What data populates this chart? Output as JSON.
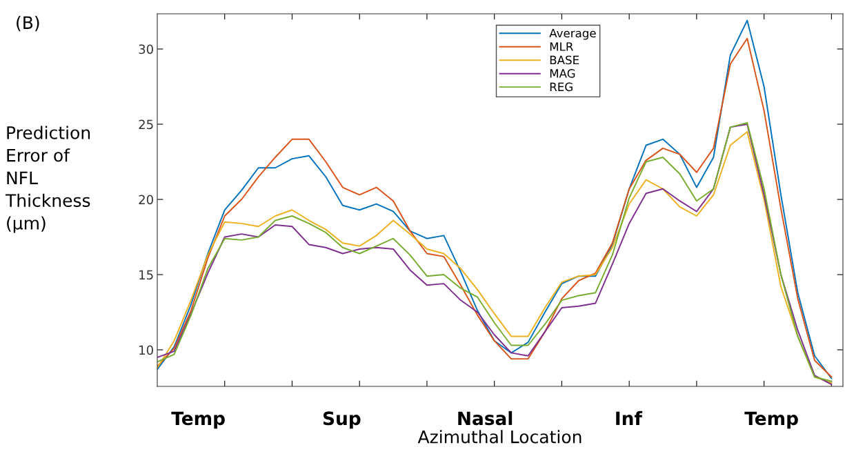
{
  "chart_data": {
    "type": "line",
    "title": "(B)",
    "xlabel": "Azimuthal Location",
    "ylabel": "Prediction\nError of\nNFL\nThickness\n(μm)",
    "annotations": [
      "Temp",
      "Sup",
      "Nasal",
      "Inf",
      "Temp"
    ],
    "categories": [
      null,
      null,
      null,
      null,
      null,
      null,
      null,
      null,
      null,
      null,
      null,
      null,
      null,
      null,
      null,
      null,
      null,
      null,
      null,
      null,
      null,
      null,
      null,
      null,
      null,
      null,
      null,
      null,
      null,
      null,
      null,
      null,
      null,
      null,
      null,
      null,
      null,
      null,
      null,
      null,
      null
    ],
    "ylim": [
      7.57,
      32.34
    ],
    "yticks": [
      10,
      15,
      20,
      25,
      30
    ],
    "grid": false,
    "legend": "top",
    "marker": "none",
    "line_style": "solid",
    "series": [
      {
        "name": "Average",
        "color": "#0072bd",
        "values": [
          8.7,
          10.2,
          13.0,
          16.4,
          19.3,
          20.6,
          22.1,
          22.1,
          22.7,
          22.9,
          21.5,
          19.6,
          19.3,
          19.7,
          19.2,
          17.9,
          17.4,
          17.6,
          15.2,
          12.6,
          10.6,
          9.8,
          10.5,
          12.5,
          14.4,
          14.9,
          14.9,
          17.0,
          20.7,
          23.6,
          24.0,
          23.0,
          20.8,
          22.8,
          29.6,
          31.9,
          27.5,
          20.3,
          13.8,
          9.6,
          8.1
        ]
      },
      {
        "name": "MLR",
        "color": "#d95319",
        "values": [
          8.9,
          10.1,
          12.6,
          16.1,
          18.9,
          20.0,
          21.5,
          22.8,
          24.0,
          24.0,
          22.5,
          20.8,
          20.3,
          20.8,
          19.9,
          17.9,
          16.4,
          16.2,
          14.3,
          12.3,
          10.6,
          9.4,
          9.4,
          11.2,
          13.4,
          14.6,
          15.1,
          17.1,
          20.7,
          22.6,
          23.4,
          23.0,
          21.8,
          23.4,
          29.0,
          30.7,
          25.9,
          19.4,
          13.4,
          9.3,
          8.2
        ]
      },
      {
        "name": "BASE",
        "color": "#edb120",
        "values": [
          8.8,
          10.6,
          13.3,
          16.3,
          18.5,
          18.4,
          18.2,
          18.9,
          19.3,
          18.6,
          18.0,
          17.1,
          16.9,
          17.6,
          18.6,
          17.7,
          16.7,
          16.4,
          15.4,
          14.0,
          12.4,
          10.9,
          10.9,
          12.8,
          14.5,
          14.9,
          15.0,
          16.8,
          19.7,
          21.3,
          20.7,
          19.5,
          18.9,
          20.3,
          23.6,
          24.5,
          20.0,
          14.2,
          10.9,
          8.2,
          7.8
        ]
      },
      {
        "name": "MAG",
        "color": "#7e2f8e",
        "values": [
          9.5,
          9.9,
          12.4,
          15.1,
          17.5,
          17.7,
          17.5,
          18.3,
          18.2,
          17.0,
          16.8,
          16.4,
          16.7,
          16.8,
          16.7,
          15.3,
          14.3,
          14.4,
          13.3,
          12.5,
          11.0,
          9.8,
          9.6,
          11.2,
          12.8,
          12.9,
          13.1,
          15.7,
          18.4,
          20.4,
          20.7,
          19.9,
          19.2,
          20.7,
          24.8,
          25.0,
          20.3,
          15.0,
          11.3,
          8.3,
          7.7
        ]
      },
      {
        "name": "REG",
        "color": "#77ac30",
        "values": [
          9.2,
          9.7,
          12.3,
          15.4,
          17.4,
          17.3,
          17.5,
          18.6,
          18.9,
          18.4,
          17.8,
          16.8,
          16.4,
          16.9,
          17.4,
          16.3,
          14.9,
          15.0,
          14.1,
          13.5,
          11.8,
          10.3,
          10.3,
          11.7,
          13.3,
          13.6,
          13.8,
          16.3,
          20.1,
          22.5,
          22.8,
          21.7,
          19.9,
          20.7,
          24.8,
          25.1,
          20.7,
          15.0,
          10.9,
          8.2,
          7.9
        ]
      }
    ]
  }
}
